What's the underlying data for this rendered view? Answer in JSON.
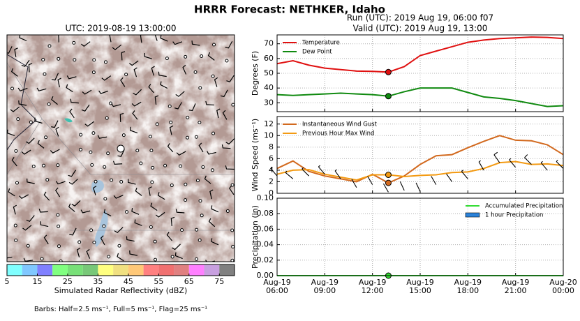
{
  "title": "HRRR Forecast: NETHKER, Idaho",
  "chart_data": [
    {
      "type": "map",
      "title": "UTC: 2019-08-19 13:00:00",
      "colorbar": {
        "label": "Simulated Radar Reflectivity (dBZ)",
        "bounds": [
          5,
          10,
          15,
          20,
          25,
          30,
          35,
          40,
          45,
          50,
          55,
          60,
          65,
          70,
          75,
          80
        ],
        "colors": [
          "#80ffff",
          "#80c8ff",
          "#8080ff",
          "#80ff80",
          "#78e078",
          "#78c878",
          "#ffff80",
          "#f0e080",
          "#ffc878",
          "#ff8080",
          "#f07070",
          "#e08080",
          "#ff80ff",
          "#c8a0e0",
          "#808080"
        ],
        "ticks": [
          5,
          15,
          25,
          35,
          45,
          55,
          65,
          75
        ]
      },
      "note": "Barbs: Half=2.5 ms⁻¹, Full=5 ms⁻¹, Flag=25 ms⁻¹"
    },
    {
      "type": "line",
      "title": "Run (UTC): 2019 Aug 19, 06:00 f07",
      "subtitle": "Valid (UTC): 2019 Aug 19, 13:00",
      "ylabel": "Degrees (F)",
      "x": [
        "2019-08-19 06:00",
        "2019-08-19 07:00",
        "2019-08-19 08:00",
        "2019-08-19 09:00",
        "2019-08-19 10:00",
        "2019-08-19 11:00",
        "2019-08-19 12:00",
        "2019-08-19 13:00",
        "2019-08-19 14:00",
        "2019-08-19 15:00",
        "2019-08-19 16:00",
        "2019-08-19 17:00",
        "2019-08-19 18:00",
        "2019-08-19 19:00",
        "2019-08-19 20:00",
        "2019-08-19 21:00",
        "2019-08-19 22:00",
        "2019-08-19 23:00",
        "2019-08-20 00:00"
      ],
      "xlim": [
        "2019-08-19 06:00",
        "2019-08-20 00:00"
      ],
      "xticks": [
        "2019-08-19 06:00",
        "2019-08-19 09:00",
        "2019-08-19 12:00",
        "2019-08-19 15:00",
        "2019-08-19 18:00",
        "2019-08-19 21:00",
        "2019-08-20 00:00"
      ],
      "ylim": [
        24,
        76
      ],
      "yticks": [
        30,
        40,
        50,
        60,
        70
      ],
      "grid": true,
      "legend": "upper left",
      "highlight_x": "2019-08-19 13:00",
      "series": [
        {
          "name": "Temperature",
          "color": "#e01010",
          "values": [
            56.5,
            58.5,
            55.5,
            53.5,
            52.5,
            51.5,
            51.3,
            50.8,
            54.5,
            62,
            65,
            68,
            71,
            72.5,
            73.5,
            74,
            74.5,
            74.3,
            73.5
          ]
        },
        {
          "name": "Dew Point",
          "color": "#108a10",
          "values": [
            35.5,
            35,
            35.5,
            36,
            36.5,
            36,
            35.5,
            34.5,
            37.5,
            40,
            40,
            40,
            37,
            34,
            33,
            31.5,
            29.5,
            27.5,
            28
          ]
        }
      ]
    },
    {
      "type": "line",
      "ylabel": "Wind Speed (ms⁻¹)",
      "x": [
        "2019-08-19 06:00",
        "2019-08-19 07:00",
        "2019-08-19 08:00",
        "2019-08-19 09:00",
        "2019-08-19 10:00",
        "2019-08-19 11:00",
        "2019-08-19 12:00",
        "2019-08-19 13:00",
        "2019-08-19 14:00",
        "2019-08-19 15:00",
        "2019-08-19 16:00",
        "2019-08-19 17:00",
        "2019-08-19 18:00",
        "2019-08-19 19:00",
        "2019-08-19 20:00",
        "2019-08-19 21:00",
        "2019-08-19 22:00",
        "2019-08-19 23:00",
        "2019-08-20 00:00"
      ],
      "xlim": [
        "2019-08-19 06:00",
        "2019-08-20 00:00"
      ],
      "xticks": [
        "2019-08-19 06:00",
        "2019-08-19 09:00",
        "2019-08-19 12:00",
        "2019-08-19 15:00",
        "2019-08-19 18:00",
        "2019-08-19 21:00",
        "2019-08-20 00:00"
      ],
      "ylim": [
        0,
        13.3
      ],
      "yticks": [
        0,
        2,
        4,
        6,
        8,
        10,
        12
      ],
      "grid": true,
      "legend": "upper left",
      "highlight_x": "2019-08-19 13:00",
      "series": [
        {
          "name": "Instantaneous Wind Gust",
          "color": "#d2691e",
          "values": [
            4.3,
            5.6,
            3.8,
            3.0,
            2.5,
            2.0,
            3.3,
            1.8,
            3.0,
            5.0,
            6.5,
            6.7,
            7.9,
            9.0,
            10.0,
            9.2,
            9.1,
            8.4,
            6.7
          ]
        },
        {
          "name": "Previous Hour Max Wind",
          "color": "#f39a12",
          "values": [
            3.3,
            4.0,
            4.1,
            3.3,
            2.8,
            2.3,
            3.2,
            3.2,
            2.9,
            3.1,
            3.2,
            3.6,
            3.7,
            4.3,
            5.3,
            5.5,
            5.0,
            5.1,
            4.8
          ]
        }
      ],
      "barbs": {
        "speed": [
          3.0,
          2.5,
          3.0,
          3.3,
          2.5,
          1.0,
          1.5,
          0.2,
          0.5,
          0.3,
          1.5,
          2.0,
          2.5,
          4.0,
          5.3,
          4.5,
          5.0,
          4.0,
          4.3
        ],
        "direction": [
          320,
          310,
          315,
          320,
          325,
          330,
          330,
          330,
          335,
          335,
          330,
          325,
          320,
          330,
          325,
          320,
          315,
          320,
          315
        ]
      }
    },
    {
      "type": "line",
      "ylabel": "Precipitation (in)",
      "x": [
        "2019-08-19 06:00",
        "2019-08-19 07:00",
        "2019-08-19 08:00",
        "2019-08-19 09:00",
        "2019-08-19 10:00",
        "2019-08-19 11:00",
        "2019-08-19 12:00",
        "2019-08-19 13:00",
        "2019-08-19 14:00",
        "2019-08-19 15:00",
        "2019-08-19 16:00",
        "2019-08-19 17:00",
        "2019-08-19 18:00",
        "2019-08-19 19:00",
        "2019-08-19 20:00",
        "2019-08-19 21:00",
        "2019-08-19 22:00",
        "2019-08-19 23:00",
        "2019-08-20 00:00"
      ],
      "xlim": [
        "2019-08-19 06:00",
        "2019-08-20 00:00"
      ],
      "xticks": [
        {
          "value": "2019-08-19 06:00",
          "label": "Aug-19 06:00"
        },
        {
          "value": "2019-08-19 09:00",
          "label": "Aug-19 09:00"
        },
        {
          "value": "2019-08-19 12:00",
          "label": "Aug-19 12:00"
        },
        {
          "value": "2019-08-19 15:00",
          "label": "Aug-19 15:00"
        },
        {
          "value": "2019-08-19 18:00",
          "label": "Aug-19 18:00"
        },
        {
          "value": "2019-08-19 21:00",
          "label": "Aug-19 21:00"
        },
        {
          "value": "2019-08-20 00:00",
          "label": "Aug-20 00:00"
        }
      ],
      "ylim": [
        0,
        0.1
      ],
      "yticks": [
        {
          "value": 0,
          "label": "0.00"
        },
        {
          "value": 0.02,
          "label": "0.02"
        },
        {
          "value": 0.04,
          "label": "0.04"
        },
        {
          "value": 0.06,
          "label": "0.06"
        },
        {
          "value": 0.08,
          "label": "0.08"
        },
        {
          "value": 0.1,
          "label": "0.10"
        }
      ],
      "grid": true,
      "legend": "upper right",
      "highlight_x": "2019-08-19 13:00",
      "series": [
        {
          "name": "Accumulated Precipitation",
          "color": "#33dd33",
          "values": [
            0,
            0,
            0,
            0,
            0,
            0,
            0,
            0,
            0,
            0,
            0,
            0,
            0,
            0,
            0,
            0,
            0,
            0,
            0
          ]
        },
        {
          "name": "1 hour Precipitation",
          "type": "bar",
          "color": "#2b82d9",
          "values": [
            0,
            0,
            0,
            0,
            0,
            0,
            0,
            0,
            0,
            0,
            0,
            0,
            0,
            0,
            0,
            0,
            0,
            0,
            0
          ]
        }
      ]
    }
  ]
}
